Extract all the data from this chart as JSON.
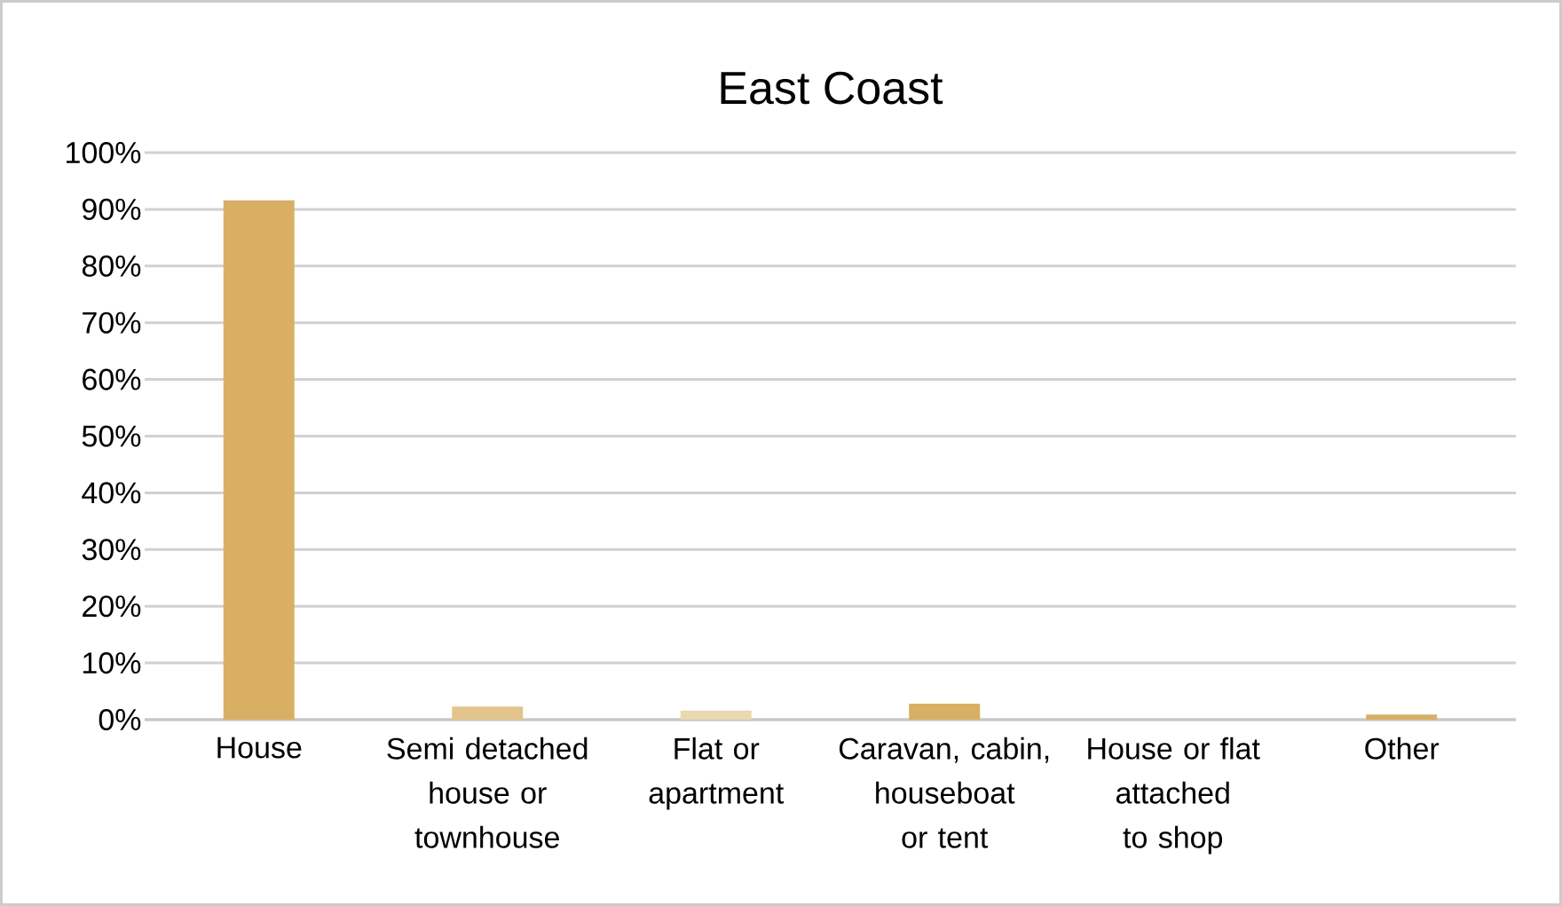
{
  "chart_data": {
    "type": "bar",
    "title": "East Coast",
    "categories": [
      "House",
      "Semi detached house or townhouse",
      "Flat or apartment",
      "Caravan, cabin, houseboat or tent",
      "House or flat attached to shop",
      "Other"
    ],
    "values": [
      91.6,
      2.3,
      1.6,
      2.8,
      0,
      0.9
    ],
    "colors": [
      "#d9b063",
      "#e3c58c",
      "#ead8b0",
      "#d9b063",
      "#d9b063",
      "#d9b063"
    ],
    "ylim": [
      0,
      100
    ],
    "yticks": [
      {
        "value": 0,
        "label": "0%"
      },
      {
        "value": 10,
        "label": "10%"
      },
      {
        "value": 20,
        "label": "20%"
      },
      {
        "value": 30,
        "label": "30%"
      },
      {
        "value": 40,
        "label": "40%"
      },
      {
        "value": 50,
        "label": "50%"
      },
      {
        "value": 60,
        "label": "60%"
      },
      {
        "value": 70,
        "label": "70%"
      },
      {
        "value": 80,
        "label": "80%"
      },
      {
        "value": 90,
        "label": "90%"
      },
      {
        "value": 100,
        "label": "100%"
      }
    ],
    "grid": "y"
  }
}
